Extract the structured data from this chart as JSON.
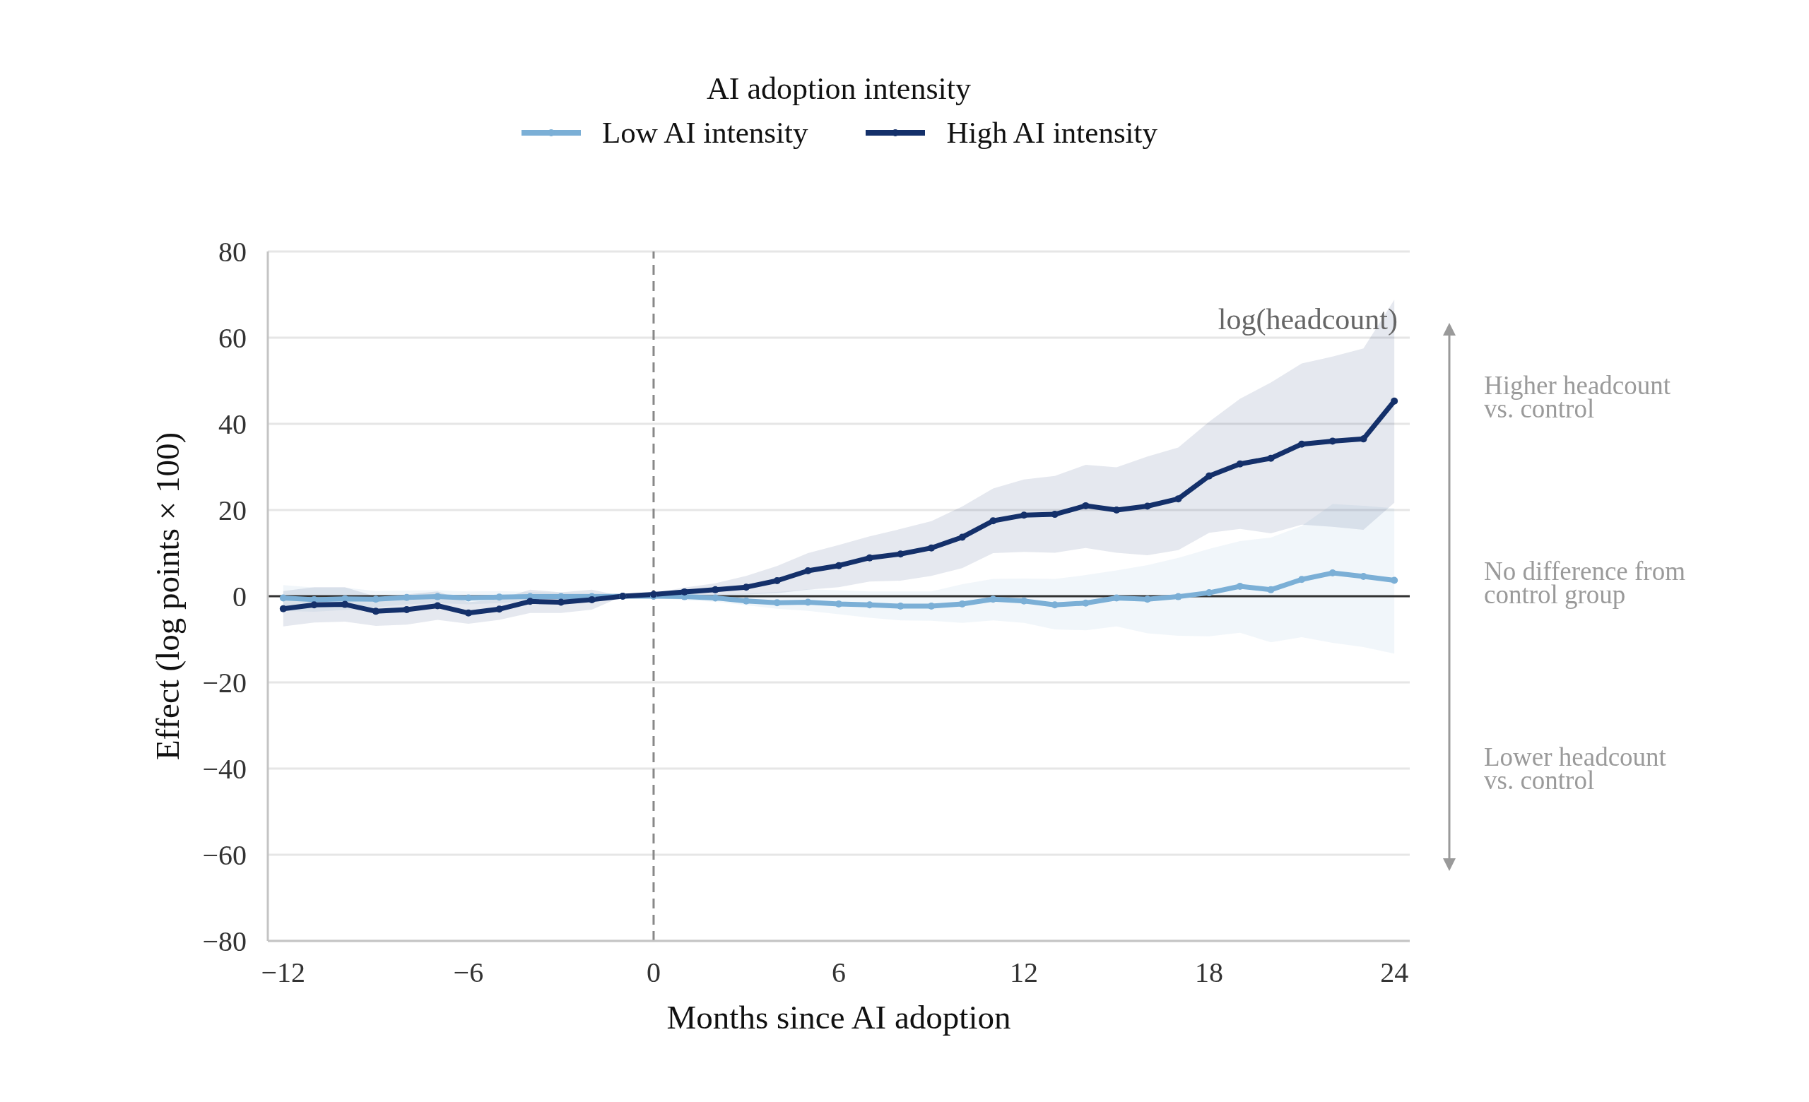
{
  "chart_data": {
    "type": "line",
    "legend_title": "AI adoption intensity",
    "xlabel": "Months since AI adoption",
    "ylabel": "Effect (log points × 100)",
    "annotations": [
      "log(headcount)",
      "Higher headcount vs. control",
      "No difference from control group",
      "Lower headcount vs. control"
    ],
    "x": [
      -12,
      -11,
      -10,
      -9,
      -8,
      -7,
      -6,
      -5,
      -4,
      -3,
      -2,
      -1,
      0,
      1,
      2,
      3,
      4,
      5,
      6,
      7,
      8,
      9,
      10,
      11,
      12,
      13,
      14,
      15,
      16,
      17,
      18,
      19,
      20,
      21,
      22,
      23,
      24
    ],
    "series": [
      {
        "name": "Low AI intensity",
        "color": "#7bafd6",
        "values": [
          -0.4,
          -0.8,
          -0.6,
          -0.7,
          -0.3,
          -0.1,
          -0.4,
          -0.2,
          -0.1,
          -0.1,
          -0.1,
          0,
          0,
          -0.1,
          -0.4,
          -1.1,
          -1.5,
          -1.4,
          -1.8,
          -2.0,
          -2.3,
          -2.3,
          -1.8,
          -0.7,
          -1.1,
          -2.0,
          -1.6,
          -0.4,
          -0.7,
          -0.1,
          0.8,
          2.3,
          1.5,
          3.9,
          5.4,
          4.6,
          3.7
        ],
        "lower": [
          -3.4,
          -3.6,
          -3.2,
          -2.6,
          -1.9,
          -1.6,
          -1.9,
          -1.6,
          -1.2,
          -1.0,
          -0.9,
          0,
          -0.3,
          -0.9,
          -1.3,
          -2.1,
          -2.9,
          -3.4,
          -4.2,
          -5.0,
          -5.6,
          -5.7,
          -6.2,
          -5.6,
          -6.2,
          -7.7,
          -7.9,
          -7.0,
          -8.6,
          -9.2,
          -9.3,
          -8.5,
          -10.7,
          -9.5,
          -10.8,
          -11.8,
          -13.3
        ],
        "upper": [
          2.6,
          2.0,
          2.0,
          1.2,
          1.3,
          1.4,
          1.1,
          1.2,
          1.0,
          0.8,
          0.7,
          0,
          0.3,
          0.7,
          0.5,
          0.6,
          1.0,
          1.6,
          1.4,
          1.1,
          1.1,
          1.1,
          2.8,
          4.0,
          4.1,
          4.0,
          4.9,
          6.0,
          7.2,
          8.9,
          11.0,
          12.8,
          13.6,
          16.3,
          21.4,
          21.0,
          20.4
        ]
      },
      {
        "name": "High AI intensity",
        "color": "#14306a",
        "values": [
          -2.9,
          -2.0,
          -1.9,
          -3.5,
          -3.1,
          -2.2,
          -3.9,
          -3.0,
          -1.2,
          -1.4,
          -0.8,
          0,
          0.4,
          1.0,
          1.5,
          2.1,
          3.6,
          5.9,
          7.1,
          8.9,
          9.8,
          11.2,
          13.7,
          17.5,
          18.8,
          19.0,
          21.0,
          20.0,
          20.9,
          22.6,
          27.9,
          30.7,
          32.0,
          35.3,
          36.0,
          36.5,
          45.3
        ],
        "lower": [
          -7.0,
          -6.1,
          -5.9,
          -6.9,
          -6.6,
          -5.5,
          -6.4,
          -5.5,
          -3.9,
          -3.9,
          -3.1,
          0,
          0.1,
          0.2,
          0.3,
          0.4,
          0.7,
          1.5,
          2.1,
          3.4,
          3.6,
          4.7,
          6.5,
          10.0,
          10.3,
          10.1,
          11.2,
          10.1,
          9.5,
          10.7,
          14.7,
          15.6,
          14.6,
          16.6,
          16.1,
          15.4,
          21.7
        ],
        "upper": [
          1.2,
          2.1,
          2.1,
          -0.1,
          0.4,
          1.1,
          -1.4,
          -0.7,
          1.5,
          0.9,
          1.5,
          0,
          0.7,
          2.0,
          3.0,
          4.7,
          7.0,
          10.0,
          11.9,
          13.9,
          15.6,
          17.4,
          20.8,
          25.0,
          27.1,
          27.9,
          30.5,
          29.9,
          32.4,
          34.5,
          40.5,
          45.8,
          49.6,
          54.0,
          55.6,
          57.5,
          68.8
        ]
      }
    ],
    "xlim": [
      -12.5,
      24.5
    ],
    "xticks": [
      {
        "value": -12,
        "label": "−12"
      },
      {
        "value": -6,
        "label": "−6"
      },
      0,
      6,
      12,
      18,
      24
    ],
    "ylim": [
      -80,
      80
    ],
    "yticks": [
      {
        "value": -80,
        "label": "−80"
      },
      {
        "value": -60,
        "label": "−60"
      },
      {
        "value": -40,
        "label": "−40"
      },
      {
        "value": -20,
        "label": "−20"
      },
      0,
      20,
      40,
      60,
      80
    ],
    "grid": "y",
    "legend": "top",
    "marker": "circle",
    "line_style": "solid",
    "ref_lines": [
      {
        "axis": "y",
        "value": 0,
        "color": "#333333",
        "line_style": "solid"
      },
      {
        "axis": "x",
        "value": 0,
        "color": "#888888",
        "line_style": "dashed"
      }
    ]
  }
}
